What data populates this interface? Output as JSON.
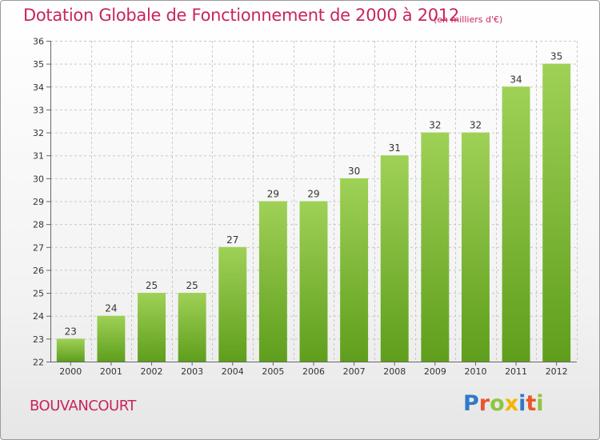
{
  "header": {
    "title": "Dotation Globale de Fonctionnement de 2000 à 2012",
    "subtitle": "(en milliers d'€)"
  },
  "footer": {
    "commune": "BOUVANCOURT",
    "logo": "Proxiti",
    "logo_colors": [
      "#2f79c8",
      "#e8572b",
      "#8cc63f",
      "#f4b400",
      "#2f79c8",
      "#e8572b",
      "#8cc63f"
    ]
  },
  "colors": {
    "accent": "#c8265a",
    "bar_light": "#9fd157",
    "bar_dark": "#5f9e1c",
    "grid": "#c8c8c8"
  },
  "chart_data": {
    "type": "bar",
    "title": "Dotation Globale de Fonctionnement de 2000 à 2012",
    "subtitle": "(en milliers d'€)",
    "xlabel": "",
    "ylabel": "",
    "categories": [
      "2000",
      "2001",
      "2002",
      "2003",
      "2004",
      "2005",
      "2006",
      "2007",
      "2008",
      "2009",
      "2010",
      "2011",
      "2012"
    ],
    "values": [
      23,
      24,
      25,
      25,
      27,
      29,
      29,
      30,
      31,
      32,
      32,
      34,
      35
    ],
    "ylim": [
      22,
      36
    ],
    "yticks": [
      22,
      23,
      24,
      25,
      26,
      27,
      28,
      29,
      30,
      31,
      32,
      33,
      34,
      35,
      36
    ],
    "grid": true,
    "data_labels": true,
    "legend": "none"
  }
}
